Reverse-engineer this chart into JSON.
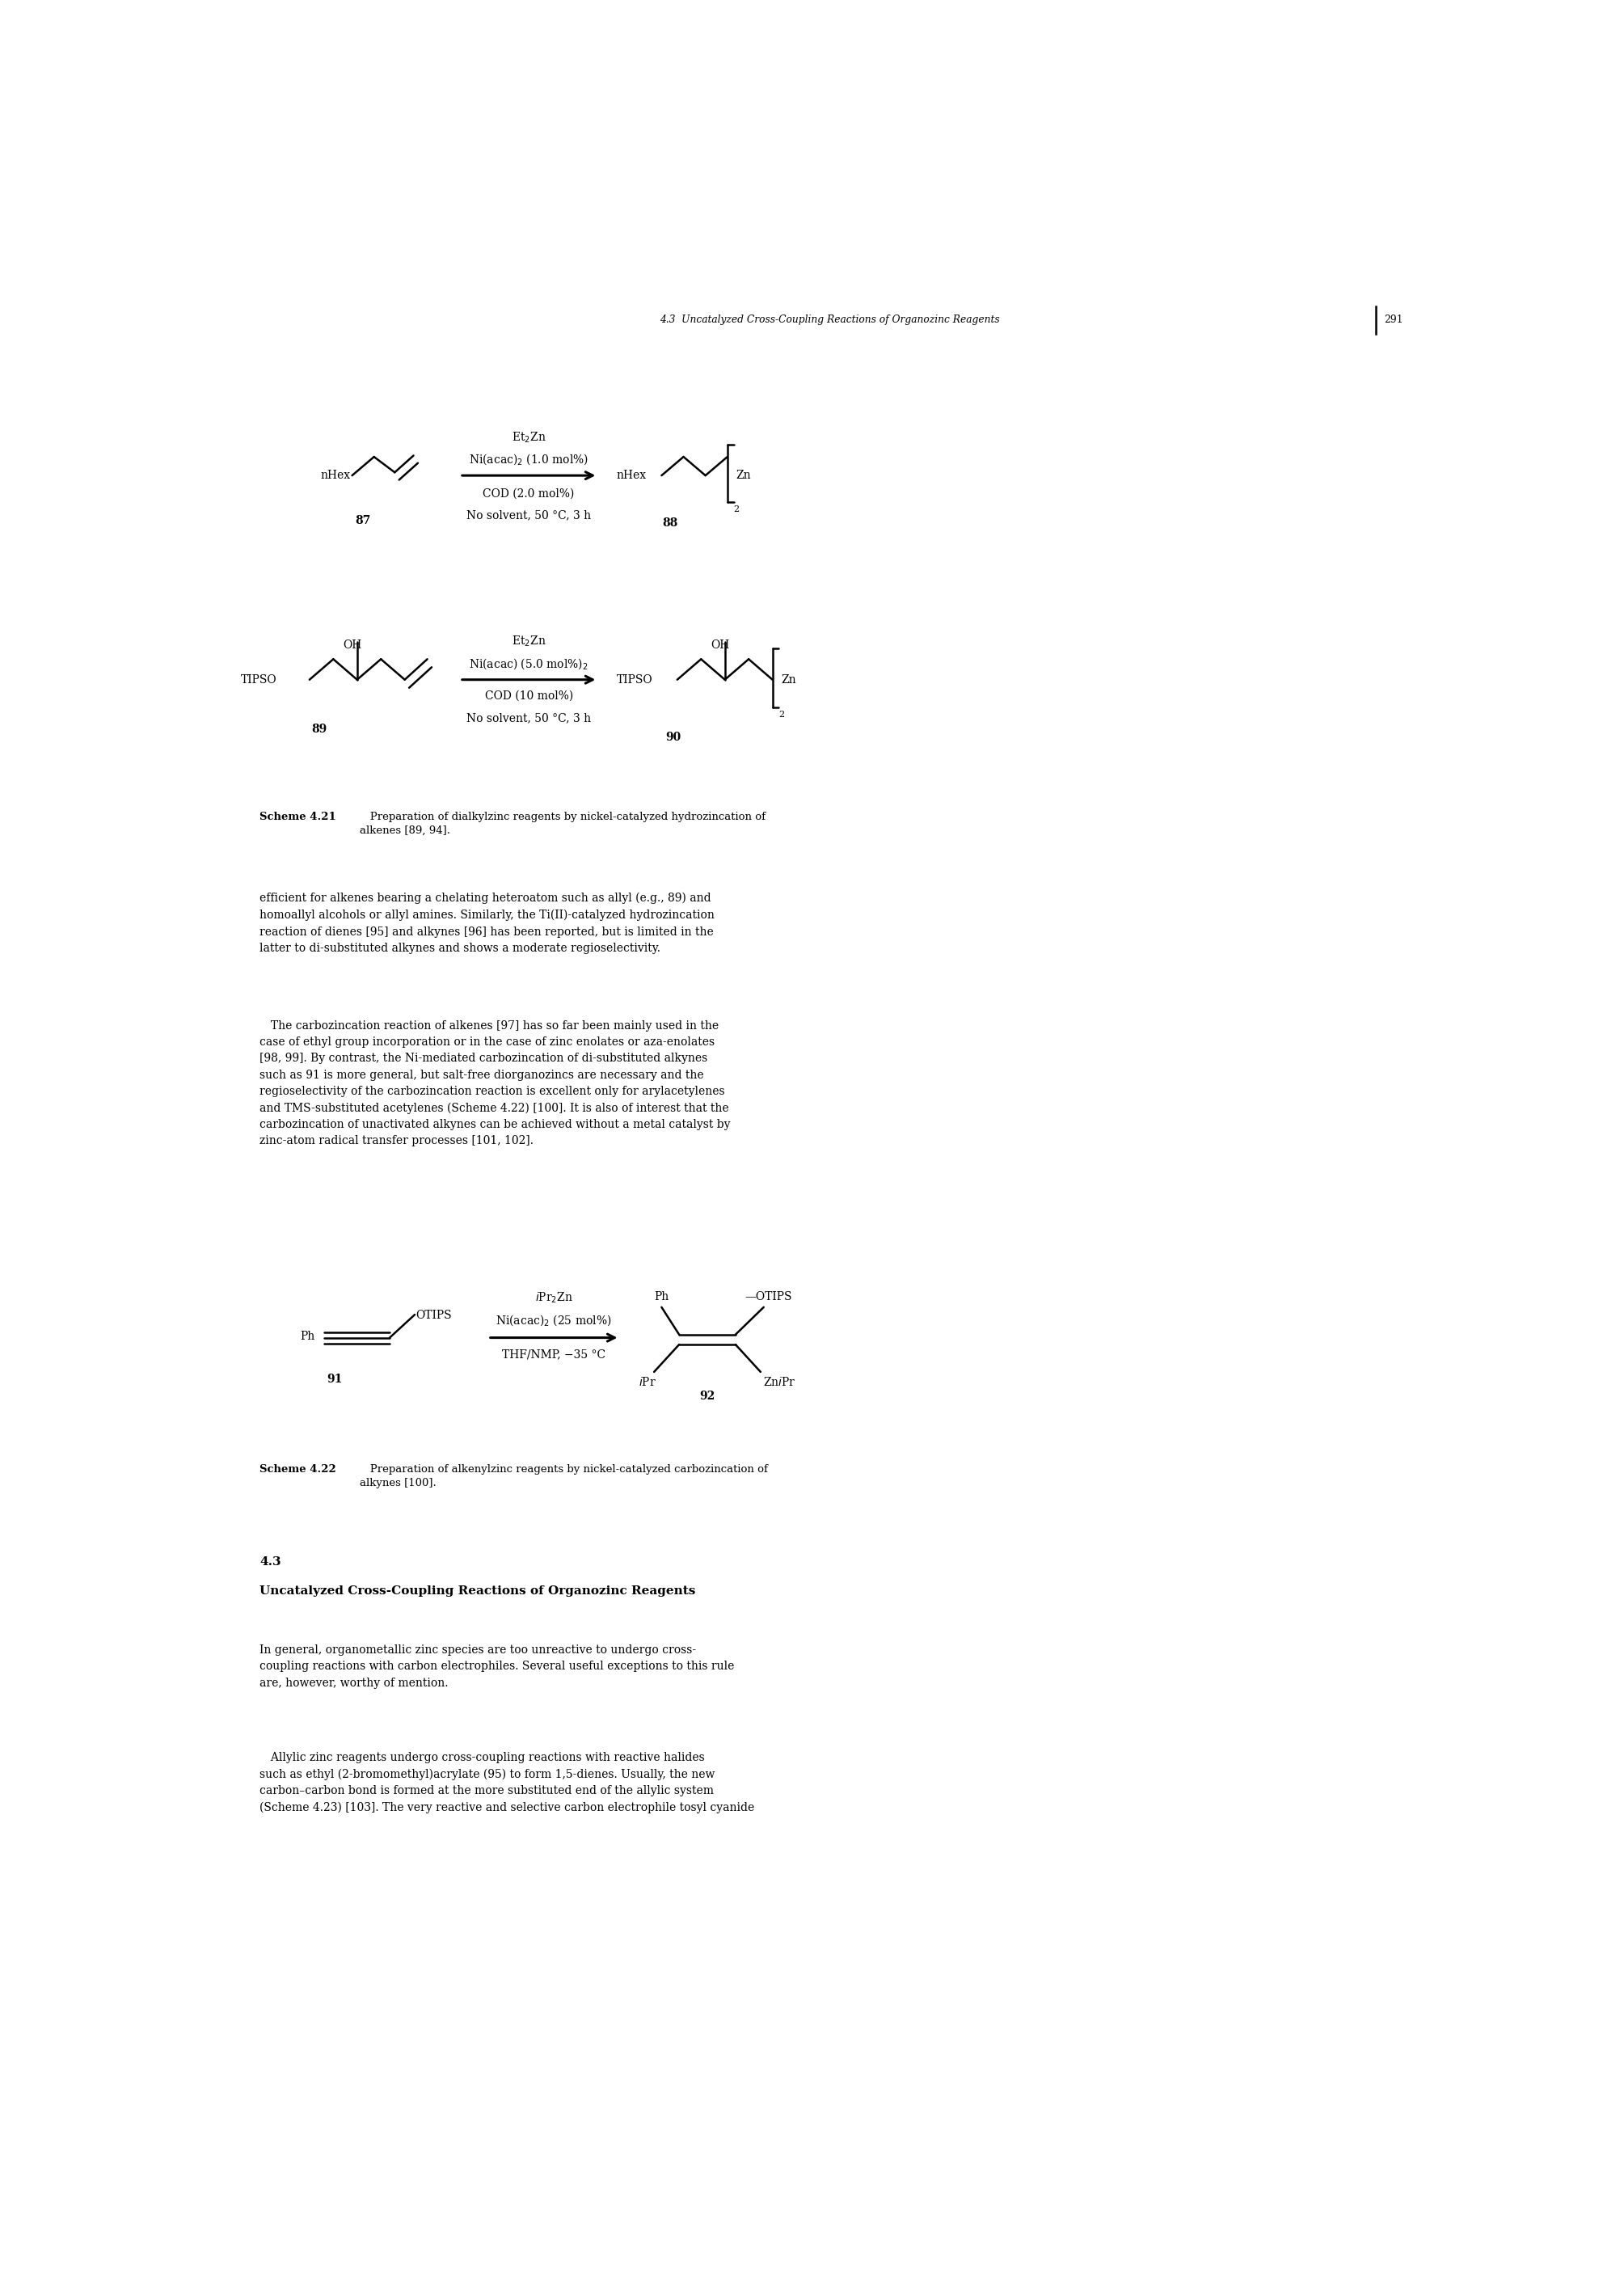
{
  "page_width": 20.09,
  "page_height": 28.35,
  "bg": "#ffffff",
  "header": "4.3  Uncatalyzed Cross-Coupling Reactions of Organozinc Reagents",
  "pagenum": "291",
  "scheme421_bold": "Scheme 4.21",
  "scheme421_rest": "   Preparation of dialkylzinc reagents by nickel-catalyzed hydrozincation of\nalkenes [89, 94].",
  "scheme422_bold": "Scheme 4.22",
  "scheme422_rest": "   Preparation of alkenylzinc reagents by nickel-catalyzed carbozincation of\nalkynes [100].",
  "sec_num": "4.3",
  "sec_title": "Uncatalyzed Cross-Coupling Reactions of Organozinc Reagents",
  "p1": "efficient for alkenes bearing a chelating heteroatom such as allyl (e.g., 89) and\nhomoallyl alcohols or allyl amines. Similarly, the Ti(II)-catalyzed hydrozincation\nreaction of dienes [95] and alkynes [96] has been reported, but is limited in the\nlatter to di-substituted alkynes and shows a moderate regioselectivity.",
  "p2": " The carbozincation reaction of alkenes [97] has so far been mainly used in the\ncase of ethyl group incorporation or in the case of zinc enolates or aza-enolates\n[98, 99]. By contrast, the Ni-mediated carbozincation of di-substituted alkynes\nsuch as 91 is more general, but salt-free diorganozincs are necessary and the\nregioselectivity of the carbozincation reaction is excellent only for arylacetylenes\nand TMS-substituted acetylenes (Scheme 4.22) [100]. It is also of interest that the\ncarbozincation of unactivated alkynes can be achieved without a metal catalyst by\nzinc-atom radical transfer processes [101, 102].",
  "p3": "In general, organometallic zinc species are too unreactive to undergo cross-\ncoupling reactions with carbon electrophiles. Several useful exceptions to this rule\nare, however, worthy of mention.",
  "p4": " Allylic zinc reagents undergo cross-coupling reactions with reactive halides\nsuch as ethyl (2-bromomethyl)acrylate (95) to form 1,5-dienes. Usually, the new\ncarbon–carbon bond is formed at the more substituted end of the allylic system\n(Scheme 4.23) [103]. The very reactive and selective carbon electrophile tosyl cyanide"
}
